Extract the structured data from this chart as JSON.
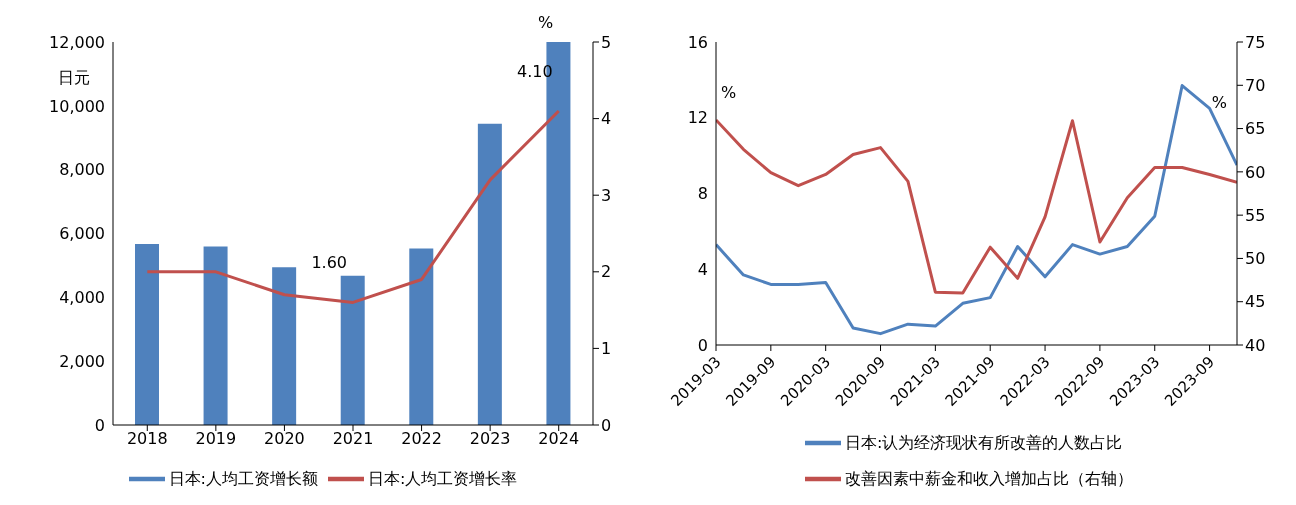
{
  "chart_data": [
    {
      "type": "bar",
      "ylabel": "日元",
      "y2label": "%",
      "categories": [
        "2018",
        "2019",
        "2020",
        "2021",
        "2022",
        "2023",
        "2024"
      ],
      "ylim": [
        0,
        12000
      ],
      "yticks": [
        {
          "value": 0,
          "label": "0"
        },
        {
          "value": 2000,
          "label": "2,000"
        },
        {
          "value": 4000,
          "label": "4,000"
        },
        {
          "value": 6000,
          "label": "6,000"
        },
        {
          "value": 8000,
          "label": "8,000"
        },
        {
          "value": 10000,
          "label": "10,000"
        },
        {
          "value": 12000,
          "label": "12,000"
        }
      ],
      "y2lim": [
        0,
        5
      ],
      "y2ticks": [
        0,
        1,
        2,
        3,
        4,
        5
      ],
      "grid": false,
      "legend": "bottom",
      "marker": "none",
      "series": [
        {
          "name": "日本:人均工资增长额",
          "color": "#4f81bd",
          "values": [
            5670,
            5590,
            4940,
            4680,
            5530,
            9440,
            12000
          ]
        },
        {
          "name": "日本:人均工资增长率",
          "type": "line",
          "axis": "y2",
          "color": "#c0504d",
          "values": [
            2.0,
            2.0,
            1.7,
            1.6,
            1.9,
            3.2,
            4.1
          ],
          "value_labels": [
            null,
            null,
            null,
            "1.60",
            null,
            null,
            "4.10"
          ]
        }
      ]
    },
    {
      "type": "line",
      "ylabel": "%",
      "y2label": "%",
      "x": [
        "2019-03",
        "2019-06",
        "2019-09",
        "2019-12",
        "2020-03",
        "2020-06",
        "2020-09",
        "2020-12",
        "2021-03",
        "2021-06",
        "2021-09",
        "2021-12",
        "2022-03",
        "2022-06",
        "2022-09",
        "2022-12",
        "2023-03",
        "2023-06",
        "2023-09",
        "2023-12"
      ],
      "xlim": [
        "2019-03",
        "2023-12"
      ],
      "xticks": [
        "2019-03",
        "2019-09",
        "2020-03",
        "2020-09",
        "2021-03",
        "2021-09",
        "2022-03",
        "2022-09",
        "2023-03",
        "2023-09"
      ],
      "ylim": [
        0,
        16
      ],
      "yticks": [
        0,
        4,
        8,
        12,
        16
      ],
      "y2lim": [
        40,
        75
      ],
      "y2ticks": [
        40,
        45,
        50,
        55,
        60,
        65,
        70,
        75
      ],
      "grid": false,
      "legend": "bottom",
      "marker": "none",
      "series": [
        {
          "name": "日本:认为经济现状有所改善的人数占比",
          "color": "#4f81bd",
          "values": [
            5.3,
            3.7,
            3.2,
            3.2,
            3.3,
            0.9,
            0.6,
            1.1,
            1.0,
            2.2,
            2.5,
            5.2,
            3.6,
            5.3,
            4.8,
            5.2,
            6.8,
            13.7,
            12.5,
            9.5
          ]
        },
        {
          "name": "改善因素中薪金和收入增加占比（右轴）",
          "axis": "y2",
          "color": "#c0504d",
          "values": [
            66.0,
            62.6,
            59.9,
            58.4,
            59.7,
            62.0,
            62.8,
            58.9,
            46.1,
            46.0,
            51.3,
            47.7,
            54.8,
            65.9,
            51.9,
            57.0,
            60.5,
            60.5,
            59.7,
            58.8
          ]
        }
      ]
    }
  ]
}
